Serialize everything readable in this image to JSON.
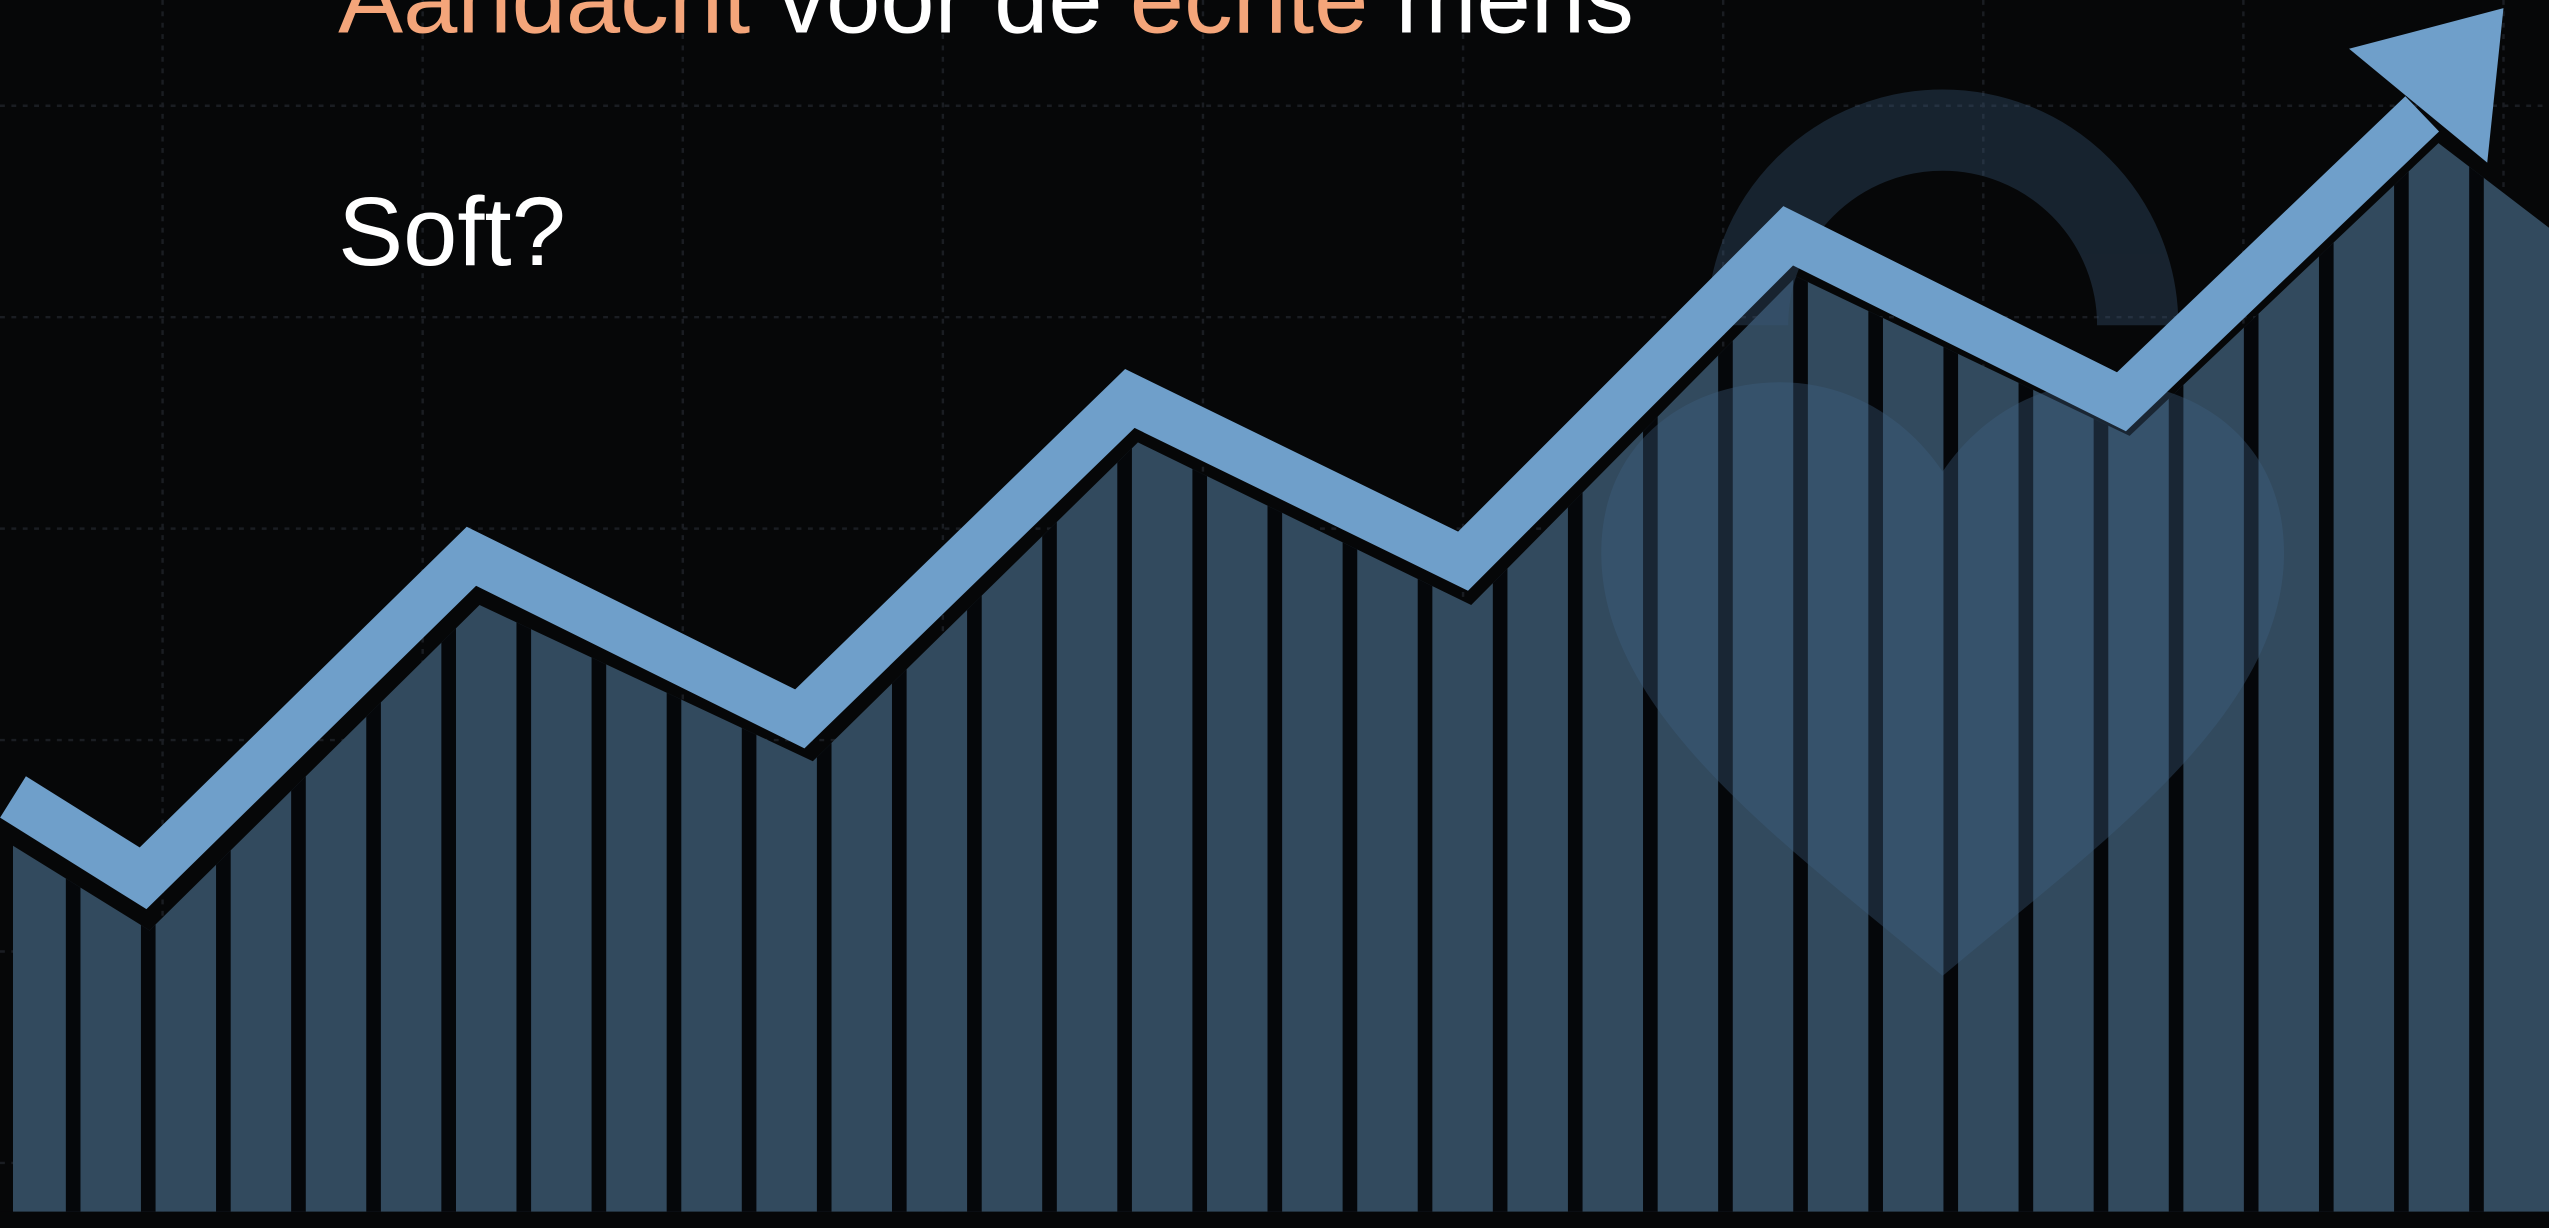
{
  "heading": {
    "words": [
      "Aandacht",
      "voor",
      "de",
      "echte",
      "mens"
    ]
  },
  "subheading": "Soft?"
}
